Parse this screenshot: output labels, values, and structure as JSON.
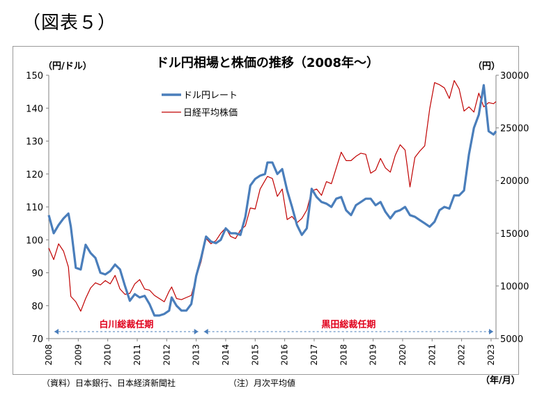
{
  "figure_label": "（図表５）",
  "notes": {
    "source": "（資料）日本銀行、日本経済新聞社",
    "note": "（注）月次平均値"
  },
  "colors": {
    "usdjpy": "#4a7ebb",
    "nikkei": "#c00000",
    "governor_text": "#e0001b",
    "arrow": "#4a7ebb"
  },
  "chart_data": {
    "type": "line",
    "title": "ドル円相場と株価の推移（2008年～）",
    "xlabel": "（年/月）",
    "ylabel_left": "（円/ドル）",
    "ylabel_right": "（円）",
    "ylim_left": [
      70,
      150
    ],
    "ylim_right": [
      5000,
      30000
    ],
    "yticks_left": [
      "70",
      "80",
      "90",
      "100",
      "110",
      "120",
      "130",
      "140",
      "150"
    ],
    "yticks_right": [
      "5000",
      "10000",
      "15000",
      "20000",
      "25000",
      "30000"
    ],
    "xticks": [
      "2008",
      "2009",
      "2010",
      "2011",
      "2012",
      "2013",
      "2014",
      "2015",
      "2016",
      "2017",
      "2018",
      "2019",
      "2020",
      "2021",
      "2022",
      "2023"
    ],
    "x_range": [
      "2008/01",
      "2023/03"
    ],
    "grid": false,
    "legend_position": "top-left",
    "periods": [
      {
        "label": "白川総裁任期",
        "start": "2008/04",
        "end": "2013/03"
      },
      {
        "label": "黒田総裁任期",
        "start": "2013/03",
        "end": "2023/03"
      }
    ],
    "series": [
      {
        "name": "ドル円レート",
        "axis": "left",
        "x": [
          "2008/01",
          "2008/03",
          "2008/05",
          "2008/07",
          "2008/09",
          "2008/10",
          "2008/12",
          "2009/02",
          "2009/04",
          "2009/06",
          "2009/08",
          "2009/10",
          "2009/12",
          "2010/02",
          "2010/04",
          "2010/06",
          "2010/08",
          "2010/10",
          "2010/12",
          "2011/02",
          "2011/04",
          "2011/06",
          "2011/08",
          "2011/10",
          "2011/12",
          "2012/02",
          "2012/03",
          "2012/05",
          "2012/07",
          "2012/09",
          "2012/11",
          "2013/01",
          "2013/03",
          "2013/05",
          "2013/07",
          "2013/09",
          "2013/11",
          "2014/01",
          "2014/03",
          "2014/05",
          "2014/07",
          "2014/09",
          "2014/11",
          "2015/01",
          "2015/03",
          "2015/05",
          "2015/06",
          "2015/08",
          "2015/10",
          "2015/12",
          "2016/02",
          "2016/04",
          "2016/06",
          "2016/08",
          "2016/10",
          "2016/12",
          "2017/02",
          "2017/04",
          "2017/06",
          "2017/08",
          "2017/10",
          "2017/12",
          "2018/02",
          "2018/04",
          "2018/06",
          "2018/08",
          "2018/10",
          "2018/12",
          "2019/02",
          "2019/04",
          "2019/06",
          "2019/08",
          "2019/10",
          "2019/12",
          "2020/02",
          "2020/04",
          "2020/06",
          "2020/08",
          "2020/10",
          "2020/12",
          "2021/02",
          "2021/04",
          "2021/06",
          "2021/08",
          "2021/10",
          "2021/12",
          "2022/02",
          "2022/04",
          "2022/06",
          "2022/08",
          "2022/10",
          "2022/12",
          "2023/02",
          "2023/03"
        ],
        "values": [
          107.5,
          102,
          104.5,
          106.5,
          108,
          104,
          91.5,
          91,
          98.5,
          96,
          94.5,
          90,
          89.5,
          90.5,
          92.5,
          91,
          86,
          81.5,
          83.5,
          82.5,
          83,
          80.5,
          77,
          77,
          77.5,
          78.5,
          82.5,
          80,
          78.5,
          78.5,
          80.5,
          89,
          94.5,
          101,
          99.5,
          99,
          100,
          103.5,
          102,
          102,
          101.5,
          107,
          116.5,
          118.5,
          119.5,
          120,
          123.5,
          123.5,
          120,
          121.5,
          115,
          110,
          104.5,
          101.5,
          103.5,
          115.5,
          113,
          111.5,
          111,
          110,
          112.5,
          113,
          109,
          107.5,
          110.5,
          111.5,
          112.5,
          112.5,
          110.5,
          111.5,
          108.5,
          106.5,
          108.5,
          109,
          110,
          107.5,
          107,
          106,
          105,
          104,
          105.5,
          109,
          110,
          109.5,
          113.5,
          113.5,
          115,
          126,
          134,
          138,
          147,
          133,
          132,
          133
        ]
      },
      {
        "name": "日経平均株価",
        "axis": "right",
        "x": [
          "2008/01",
          "2008/03",
          "2008/05",
          "2008/07",
          "2008/09",
          "2008/10",
          "2008/12",
          "2009/02",
          "2009/04",
          "2009/06",
          "2009/08",
          "2009/10",
          "2009/12",
          "2010/02",
          "2010/04",
          "2010/06",
          "2010/08",
          "2010/10",
          "2010/12",
          "2011/02",
          "2011/04",
          "2011/06",
          "2011/08",
          "2011/10",
          "2011/12",
          "2012/02",
          "2012/03",
          "2012/05",
          "2012/07",
          "2012/09",
          "2012/11",
          "2013/01",
          "2013/03",
          "2013/05",
          "2013/07",
          "2013/09",
          "2013/11",
          "2014/01",
          "2014/03",
          "2014/05",
          "2014/07",
          "2014/09",
          "2014/11",
          "2015/01",
          "2015/03",
          "2015/05",
          "2015/06",
          "2015/08",
          "2015/10",
          "2015/12",
          "2016/02",
          "2016/04",
          "2016/06",
          "2016/08",
          "2016/10",
          "2016/12",
          "2017/02",
          "2017/04",
          "2017/06",
          "2017/08",
          "2017/10",
          "2017/12",
          "2018/02",
          "2018/04",
          "2018/06",
          "2018/08",
          "2018/10",
          "2018/12",
          "2019/02",
          "2019/04",
          "2019/06",
          "2019/08",
          "2019/10",
          "2019/12",
          "2020/02",
          "2020/04",
          "2020/06",
          "2020/08",
          "2020/10",
          "2020/12",
          "2021/02",
          "2021/04",
          "2021/06",
          "2021/08",
          "2021/10",
          "2021/12",
          "2022/02",
          "2022/04",
          "2022/06",
          "2022/08",
          "2022/10",
          "2022/12",
          "2023/02",
          "2023/03"
        ],
        "values": [
          13600,
          12500,
          14000,
          13300,
          11800,
          9000,
          8500,
          7600,
          8800,
          9800,
          10300,
          10100,
          10500,
          10200,
          11000,
          9700,
          9200,
          9300,
          10200,
          10600,
          9700,
          9600,
          9100,
          8800,
          8500,
          9500,
          9900,
          8800,
          8700,
          8900,
          9100,
          10800,
          12300,
          14500,
          14000,
          14300,
          15000,
          15500,
          14700,
          14500,
          15300,
          15700,
          17400,
          17300,
          19200,
          20000,
          20400,
          20200,
          18500,
          19200,
          16300,
          16600,
          16000,
          16400,
          17200,
          19000,
          19200,
          18600,
          19900,
          19700,
          21200,
          22700,
          21900,
          21900,
          22300,
          22600,
          22500,
          20700,
          21000,
          22100,
          21200,
          20800,
          22400,
          23400,
          22900,
          19400,
          22200,
          22800,
          23300,
          26800,
          29300,
          29100,
          28800,
          27800,
          29500,
          28700,
          26600,
          27000,
          26500,
          28300,
          27000,
          27400,
          27300,
          27500
        ]
      }
    ]
  }
}
